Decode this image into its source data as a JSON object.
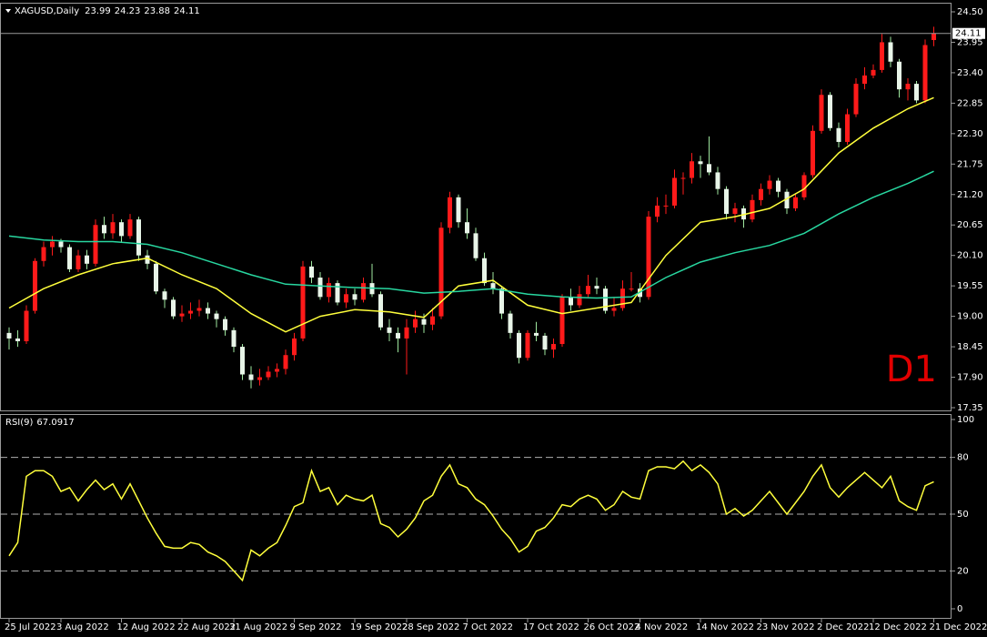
{
  "chart_data": [
    {
      "type": "candlestick",
      "title": "XAGUSD,Daily",
      "annotation": "D1",
      "bull_color": "#ff1a1a",
      "bear_color": "#e8f5e8",
      "wick_color": "#9fe89f",
      "last_price_line": true,
      "categories": [
        "25 Jul 2022",
        null,
        null,
        null,
        null,
        null,
        "3 Aug 2022",
        null,
        null,
        null,
        null,
        null,
        null,
        "12 Aug 2022",
        null,
        null,
        null,
        null,
        null,
        null,
        "22 Aug 2022",
        null,
        null,
        null,
        null,
        null,
        "31 Aug 2022",
        null,
        null,
        null,
        null,
        null,
        null,
        "9 Sep 2022",
        null,
        null,
        null,
        null,
        null,
        null,
        "19 Sep 2022",
        null,
        null,
        null,
        null,
        null,
        "28 Sep 2022",
        null,
        null,
        null,
        null,
        null,
        null,
        "7 Oct 2022",
        null,
        null,
        null,
        null,
        null,
        null,
        "17 Oct 2022",
        null,
        null,
        null,
        null,
        null,
        null,
        "26 Oct 2022",
        null,
        null,
        null,
        null,
        null,
        "4 Nov 2022",
        null,
        null,
        null,
        null,
        null,
        null,
        "14 Nov 2022",
        null,
        null,
        null,
        null,
        null,
        null,
        "23 Nov 2022",
        null,
        null,
        null,
        null,
        null,
        null,
        "2 Dec 2022",
        null,
        null,
        null,
        null,
        null,
        "12 Dec 2022",
        null,
        null,
        null,
        null,
        null,
        null,
        "21 Dec 2022"
      ],
      "ohlc": [
        [
          18.7,
          18.8,
          18.4,
          18.6
        ],
        [
          18.6,
          18.75,
          18.45,
          18.55
        ],
        [
          18.55,
          19.2,
          18.5,
          19.1
        ],
        [
          19.1,
          20.05,
          19.05,
          20.0
        ],
        [
          20.0,
          20.35,
          19.9,
          20.25
        ],
        [
          20.25,
          20.45,
          20.1,
          20.35
        ],
        [
          20.35,
          20.4,
          20.15,
          20.25
        ],
        [
          20.25,
          20.3,
          19.8,
          19.85
        ],
        [
          19.85,
          20.2,
          19.8,
          20.1
        ],
        [
          20.1,
          20.2,
          19.85,
          19.95
        ],
        [
          19.95,
          20.75,
          19.9,
          20.65
        ],
        [
          20.65,
          20.8,
          20.4,
          20.5
        ],
        [
          20.5,
          20.85,
          20.4,
          20.7
        ],
        [
          20.7,
          20.75,
          20.35,
          20.45
        ],
        [
          20.45,
          20.85,
          20.4,
          20.75
        ],
        [
          20.75,
          20.8,
          20.0,
          20.1
        ],
        [
          20.1,
          20.2,
          19.85,
          19.95
        ],
        [
          19.95,
          20.0,
          19.4,
          19.45
        ],
        [
          19.45,
          19.5,
          19.15,
          19.3
        ],
        [
          19.3,
          19.35,
          18.95,
          19.0
        ],
        [
          19.0,
          19.2,
          18.9,
          19.05
        ],
        [
          19.05,
          19.25,
          18.95,
          19.1
        ],
        [
          19.1,
          19.3,
          19.0,
          19.15
        ],
        [
          19.15,
          19.25,
          18.95,
          19.05
        ],
        [
          19.05,
          19.1,
          18.8,
          18.95
        ],
        [
          18.95,
          19.0,
          18.65,
          18.75
        ],
        [
          18.75,
          18.8,
          18.35,
          18.45
        ],
        [
          18.45,
          18.5,
          17.85,
          17.95
        ],
        [
          17.95,
          18.1,
          17.7,
          17.85
        ],
        [
          17.85,
          18.05,
          17.75,
          17.9
        ],
        [
          17.9,
          18.1,
          17.85,
          18.0
        ],
        [
          18.0,
          18.15,
          17.9,
          18.05
        ],
        [
          18.05,
          18.4,
          17.95,
          18.3
        ],
        [
          18.3,
          18.7,
          18.2,
          18.6
        ],
        [
          18.6,
          20.0,
          18.55,
          19.9
        ],
        [
          19.9,
          20.0,
          19.6,
          19.7
        ],
        [
          19.7,
          19.8,
          19.3,
          19.35
        ],
        [
          19.35,
          19.7,
          19.25,
          19.6
        ],
        [
          19.6,
          19.65,
          19.2,
          19.25
        ],
        [
          19.25,
          19.5,
          19.15,
          19.4
        ],
        [
          19.4,
          19.5,
          19.2,
          19.3
        ],
        [
          19.3,
          19.7,
          19.25,
          19.6
        ],
        [
          19.6,
          19.95,
          19.35,
          19.4
        ],
        [
          19.4,
          19.45,
          18.75,
          18.8
        ],
        [
          18.8,
          18.95,
          18.55,
          18.7
        ],
        [
          18.7,
          18.8,
          18.35,
          18.6
        ],
        [
          18.6,
          18.95,
          17.95,
          18.8
        ],
        [
          18.8,
          19.1,
          18.7,
          18.95
        ],
        [
          18.95,
          19.05,
          18.7,
          18.85
        ],
        [
          18.85,
          19.15,
          18.75,
          19.0
        ],
        [
          19.0,
          20.7,
          18.95,
          20.6
        ],
        [
          20.6,
          21.25,
          20.5,
          21.15
        ],
        [
          21.15,
          21.2,
          20.6,
          20.7
        ],
        [
          20.7,
          20.95,
          20.4,
          20.5
        ],
        [
          20.5,
          20.6,
          20.0,
          20.05
        ],
        [
          20.05,
          20.15,
          19.55,
          19.6
        ],
        [
          19.6,
          19.8,
          19.4,
          19.5
        ],
        [
          19.5,
          19.55,
          18.95,
          19.05
        ],
        [
          19.05,
          19.1,
          18.6,
          18.7
        ],
        [
          18.7,
          18.75,
          18.15,
          18.25
        ],
        [
          18.25,
          18.75,
          18.2,
          18.7
        ],
        [
          18.7,
          18.9,
          18.55,
          18.65
        ],
        [
          18.65,
          18.7,
          18.3,
          18.4
        ],
        [
          18.4,
          18.6,
          18.25,
          18.5
        ],
        [
          18.5,
          19.4,
          18.45,
          19.35
        ],
        [
          19.35,
          19.5,
          19.1,
          19.2
        ],
        [
          19.2,
          19.55,
          19.15,
          19.4
        ],
        [
          19.4,
          19.75,
          19.35,
          19.55
        ],
        [
          19.55,
          19.7,
          19.4,
          19.5
        ],
        [
          19.5,
          19.55,
          19.05,
          19.1
        ],
        [
          19.1,
          19.35,
          19.0,
          19.15
        ],
        [
          19.15,
          19.65,
          19.1,
          19.5
        ],
        [
          19.5,
          19.8,
          19.45,
          19.5
        ],
        [
          19.5,
          19.6,
          19.25,
          19.35
        ],
        [
          19.35,
          20.9,
          19.3,
          20.8
        ],
        [
          20.8,
          21.15,
          20.7,
          21.0
        ],
        [
          21.0,
          21.2,
          20.85,
          21.0
        ],
        [
          21.0,
          21.65,
          20.95,
          21.5
        ],
        [
          21.5,
          21.6,
          21.2,
          21.5
        ],
        [
          21.5,
          21.95,
          21.4,
          21.8
        ],
        [
          21.8,
          21.9,
          21.5,
          21.75
        ],
        [
          21.75,
          22.25,
          21.55,
          21.6
        ],
        [
          21.6,
          21.7,
          21.2,
          21.3
        ],
        [
          21.3,
          21.35,
          20.75,
          20.85
        ],
        [
          20.85,
          21.05,
          20.7,
          20.95
        ],
        [
          20.95,
          21.0,
          20.6,
          20.75
        ],
        [
          20.75,
          21.2,
          20.7,
          21.1
        ],
        [
          21.1,
          21.4,
          21.0,
          21.3
        ],
        [
          21.3,
          21.55,
          21.2,
          21.45
        ],
        [
          21.45,
          21.5,
          21.15,
          21.25
        ],
        [
          21.25,
          21.3,
          20.85,
          20.95
        ],
        [
          20.95,
          21.2,
          20.9,
          21.15
        ],
        [
          21.15,
          21.6,
          21.1,
          21.55
        ],
        [
          21.55,
          22.45,
          21.5,
          22.35
        ],
        [
          22.35,
          23.1,
          22.3,
          23.0
        ],
        [
          23.0,
          23.05,
          22.35,
          22.4
        ],
        [
          22.4,
          22.5,
          22.05,
          22.15
        ],
        [
          22.15,
          22.75,
          22.1,
          22.65
        ],
        [
          22.65,
          23.3,
          22.6,
          23.2
        ],
        [
          23.2,
          23.5,
          23.1,
          23.35
        ],
        [
          23.35,
          23.55,
          23.3,
          23.45
        ],
        [
          23.45,
          24.1,
          23.4,
          23.95
        ],
        [
          23.95,
          24.05,
          23.5,
          23.6
        ],
        [
          23.6,
          23.65,
          22.95,
          23.1
        ],
        [
          23.1,
          23.3,
          22.9,
          23.2
        ],
        [
          23.2,
          23.25,
          22.85,
          22.9
        ],
        [
          22.9,
          24.0,
          22.85,
          23.9
        ],
        [
          23.99,
          24.23,
          23.88,
          24.11
        ]
      ],
      "moving_averages": [
        {
          "color": "#ffff3c",
          "x": [
            0,
            4,
            8,
            12,
            16,
            20,
            24,
            28,
            32,
            36,
            40,
            44,
            48,
            52,
            56,
            60,
            64,
            68,
            72,
            76,
            80,
            84,
            88,
            92,
            96,
            100,
            104,
            107
          ],
          "values": [
            19.15,
            19.5,
            19.75,
            19.95,
            20.05,
            19.75,
            19.5,
            19.05,
            18.72,
            19.0,
            19.12,
            19.08,
            18.98,
            19.55,
            19.65,
            19.2,
            19.05,
            19.15,
            19.25,
            20.1,
            20.7,
            20.8,
            20.95,
            21.3,
            21.95,
            22.4,
            22.75,
            22.95
          ]
        },
        {
          "color": "#28d7a0",
          "x": [
            0,
            4,
            8,
            12,
            16,
            20,
            24,
            28,
            32,
            36,
            40,
            44,
            48,
            52,
            56,
            60,
            64,
            68,
            72,
            76,
            80,
            84,
            88,
            92,
            96,
            100,
            104,
            107
          ],
          "values": [
            20.45,
            20.38,
            20.35,
            20.35,
            20.3,
            20.15,
            19.95,
            19.75,
            19.58,
            19.55,
            19.52,
            19.5,
            19.42,
            19.45,
            19.5,
            19.4,
            19.35,
            19.33,
            19.35,
            19.7,
            19.98,
            20.15,
            20.28,
            20.5,
            20.85,
            21.15,
            21.4,
            21.62
          ]
        }
      ],
      "ylim": [
        17.35,
        24.5
      ],
      "yticks": [
        {
          "value": 17.35,
          "label": "17.35"
        },
        {
          "value": 17.9,
          "label": "17.90"
        },
        18.45,
        {
          "value": 19.0,
          "label": "19.00"
        },
        19.55,
        {
          "value": 20.1,
          "label": "20.10"
        },
        20.65,
        {
          "value": 21.2,
          "label": "21.20"
        },
        21.75,
        {
          "value": 22.3,
          "label": "22.30"
        },
        22.85,
        {
          "value": 23.4,
          "label": "23.40"
        },
        23.95,
        {
          "value": 24.5,
          "label": "24.50"
        }
      ]
    },
    {
      "type": "line",
      "title": "RSI(9)",
      "color": "#ffff3c",
      "dashed_levels": true,
      "values": [
        28,
        35,
        70,
        73,
        73,
        70,
        62,
        64,
        57,
        63,
        68,
        63,
        66,
        58,
        66,
        57,
        48,
        40,
        33,
        32,
        32,
        35,
        34,
        30,
        28,
        25,
        20,
        15,
        31,
        28,
        32,
        35,
        44,
        54,
        56,
        73,
        62,
        64,
        55,
        60,
        58,
        57,
        60,
        45,
        43,
        38,
        42,
        48,
        57,
        60,
        70,
        76,
        66,
        64,
        58,
        55,
        49,
        42,
        37,
        30,
        33,
        41,
        43,
        48,
        55,
        54,
        58,
        60,
        58,
        52,
        55,
        62,
        59,
        58,
        73,
        75,
        75,
        74,
        78,
        73,
        76,
        72,
        66,
        50,
        53,
        49,
        52,
        57,
        62,
        56,
        50,
        56,
        62,
        70,
        76,
        64,
        59,
        64,
        68,
        72,
        68,
        64,
        70,
        57,
        54,
        52,
        65,
        67.0917
      ],
      "ylim": [
        0,
        100
      ],
      "yticks": [
        0,
        20,
        50,
        80,
        100
      ]
    }
  ]
}
